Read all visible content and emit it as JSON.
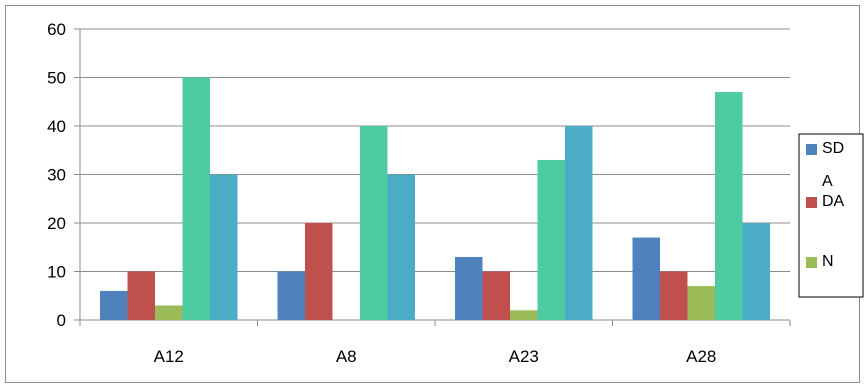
{
  "chart_data": {
    "type": "bar",
    "title": "",
    "xlabel": "",
    "ylabel": "",
    "categories": [
      "A12",
      "A8",
      "A23",
      "A28"
    ],
    "ylim": [
      0,
      60
    ],
    "yticks": [
      0,
      10,
      20,
      30,
      40,
      50,
      60
    ],
    "grid": true,
    "legend_position": "right",
    "series": [
      {
        "name": "SD",
        "color": "#4f81bd",
        "values": [
          6,
          10,
          13,
          17
        ]
      },
      {
        "name": "DA",
        "color": "#c0504d",
        "values": [
          10,
          20,
          10,
          10
        ]
      },
      {
        "name": "N",
        "color": "#9bbb59",
        "values": [
          3,
          0,
          2,
          7
        ]
      },
      {
        "color": "#4ecba0",
        "values": [
          50,
          40,
          33,
          47
        ]
      },
      {
        "color": "#4bacc6",
        "values": [
          30,
          30,
          40,
          20
        ]
      }
    ],
    "legend_overflow_text": "A"
  }
}
